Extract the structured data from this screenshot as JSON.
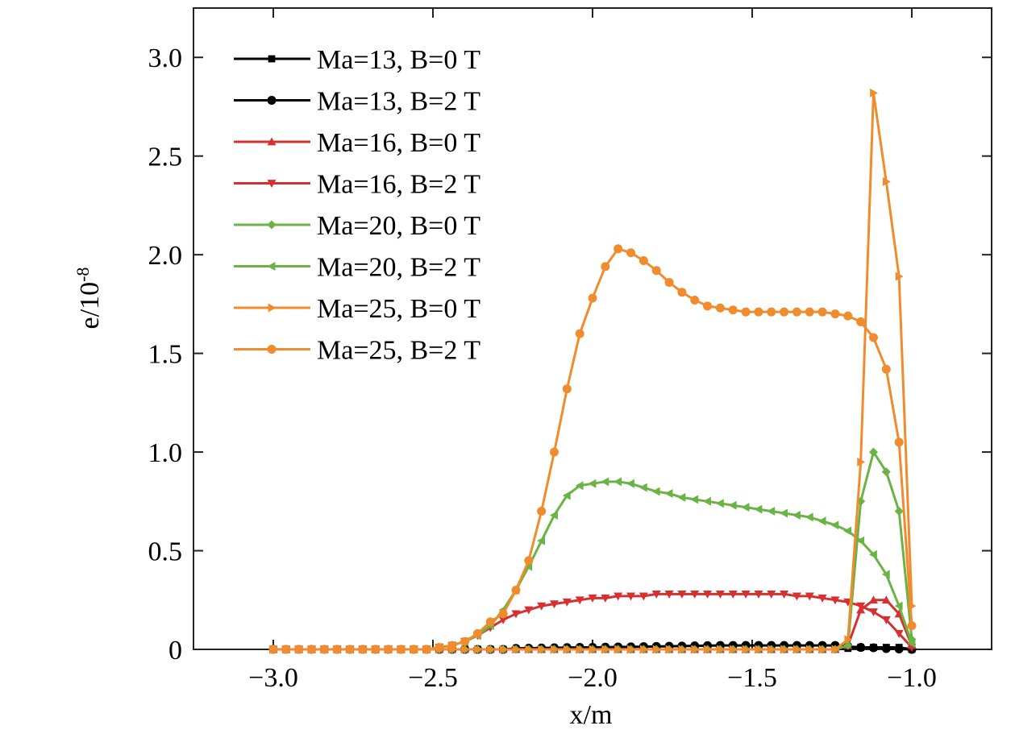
{
  "chart_data": {
    "type": "line",
    "xlabel": "x/m",
    "ylabel": "e/10",
    "ylabel_sup": "-8",
    "xlim": [
      -3.25,
      -0.75
    ],
    "ylim": [
      0,
      3.25
    ],
    "xticks": [
      {
        "value": -3.0,
        "label": "−3.0"
      },
      {
        "value": -2.5,
        "label": "−2.5"
      },
      {
        "value": -2.0,
        "label": "−2.0"
      },
      {
        "value": -1.5,
        "label": "−1.5"
      },
      {
        "value": -1.0,
        "label": "−1.0"
      }
    ],
    "yticks": [
      0,
      0.5,
      {
        "value": 1.0,
        "label": "1.0"
      },
      1.5,
      {
        "value": 2.0,
        "label": "2.0"
      },
      2.5,
      {
        "value": 3.0,
        "label": "3.0"
      }
    ],
    "legend": "upper left",
    "x": [
      -3.0,
      -2.96,
      -2.92,
      -2.88,
      -2.84,
      -2.8,
      -2.76,
      -2.72,
      -2.68,
      -2.64,
      -2.6,
      -2.56,
      -2.52,
      -2.48,
      -2.44,
      -2.4,
      -2.36,
      -2.32,
      -2.28,
      -2.24,
      -2.2,
      -2.16,
      -2.12,
      -2.08,
      -2.04,
      -2.0,
      -1.96,
      -1.92,
      -1.88,
      -1.84,
      -1.8,
      -1.76,
      -1.72,
      -1.68,
      -1.64,
      -1.6,
      -1.56,
      -1.52,
      -1.48,
      -1.44,
      -1.4,
      -1.36,
      -1.32,
      -1.28,
      -1.24,
      -1.2,
      -1.16,
      -1.12,
      -1.08,
      -1.04,
      -1.0
    ],
    "series": [
      {
        "name": "Ma=13, B=0 T",
        "color": "#000000",
        "marker": "square",
        "values": [
          0,
          0,
          0,
          0,
          0,
          0,
          0,
          0,
          0,
          0,
          0,
          0,
          0,
          0,
          0,
          0,
          0,
          0,
          0,
          0,
          0,
          0,
          0,
          0,
          0,
          0,
          0,
          0,
          0,
          0,
          0,
          0,
          0,
          0,
          0,
          0,
          0,
          0,
          0,
          0,
          0,
          0,
          0,
          0,
          0,
          0.005,
          0.01,
          0.01,
          0.01,
          0.01,
          0
        ]
      },
      {
        "name": "Ma=13, B=2 T",
        "color": "#000000",
        "marker": "circle",
        "values": [
          0,
          0,
          0,
          0,
          0,
          0,
          0,
          0,
          0,
          0,
          0,
          0,
          0,
          0,
          0,
          0,
          0,
          0,
          0,
          0.005,
          0.006,
          0.007,
          0.008,
          0.009,
          0.01,
          0.01,
          0.011,
          0.012,
          0.013,
          0.014,
          0.015,
          0.016,
          0.017,
          0.018,
          0.019,
          0.02,
          0.02,
          0.02,
          0.02,
          0.02,
          0.02,
          0.02,
          0.02,
          0.02,
          0.02,
          0.015,
          0.01,
          0.008,
          0.004,
          0.002,
          0
        ]
      },
      {
        "name": "Ma=16, B=0 T",
        "color": "#d63030",
        "marker": "up",
        "values": [
          0,
          0,
          0,
          0,
          0,
          0,
          0,
          0,
          0,
          0,
          0,
          0,
          0,
          0,
          0,
          0,
          0,
          0,
          0,
          0,
          0,
          0,
          0,
          0,
          0,
          0,
          0,
          0,
          0,
          0,
          0,
          0,
          0,
          0,
          0,
          0,
          0,
          0,
          0,
          0,
          0,
          0,
          0,
          0,
          0,
          0.02,
          0.2,
          0.25,
          0.25,
          0.18,
          0.02
        ]
      },
      {
        "name": "Ma=16, B=2 T",
        "color": "#d63030",
        "marker": "down",
        "values": [
          0,
          0,
          0,
          0,
          0,
          0,
          0,
          0,
          0,
          0,
          0,
          0,
          0,
          0.01,
          0.02,
          0.04,
          0.07,
          0.11,
          0.15,
          0.18,
          0.2,
          0.22,
          0.23,
          0.24,
          0.25,
          0.26,
          0.26,
          0.27,
          0.27,
          0.27,
          0.28,
          0.28,
          0.28,
          0.28,
          0.28,
          0.28,
          0.28,
          0.28,
          0.28,
          0.28,
          0.28,
          0.27,
          0.27,
          0.26,
          0.25,
          0.24,
          0.22,
          0.19,
          0.15,
          0.08,
          0.01
        ]
      },
      {
        "name": "Ma=20, B=0 T",
        "color": "#6ab344",
        "marker": "diamond",
        "values": [
          0,
          0,
          0,
          0,
          0,
          0,
          0,
          0,
          0,
          0,
          0,
          0,
          0,
          0,
          0,
          0,
          0,
          0,
          0,
          0,
          0,
          0,
          0,
          0,
          0,
          0,
          0,
          0,
          0,
          0,
          0,
          0,
          0,
          0,
          0,
          0,
          0,
          0,
          0,
          0,
          0,
          0,
          0,
          0,
          0,
          0.02,
          0.75,
          1.0,
          0.9,
          0.7,
          0.05
        ]
      },
      {
        "name": "Ma=20, B=2 T",
        "color": "#6ab344",
        "marker": "left",
        "values": [
          0,
          0,
          0,
          0,
          0,
          0,
          0,
          0,
          0,
          0,
          0,
          0,
          0,
          0.01,
          0.02,
          0.04,
          0.07,
          0.12,
          0.2,
          0.3,
          0.42,
          0.55,
          0.68,
          0.78,
          0.83,
          0.84,
          0.85,
          0.85,
          0.84,
          0.82,
          0.8,
          0.79,
          0.77,
          0.76,
          0.75,
          0.74,
          0.73,
          0.72,
          0.71,
          0.7,
          0.69,
          0.68,
          0.67,
          0.65,
          0.63,
          0.6,
          0.55,
          0.48,
          0.38,
          0.22,
          0.03
        ]
      },
      {
        "name": "Ma=25, B=0 T",
        "color": "#f08c2d",
        "marker": "right",
        "values": [
          0,
          0,
          0,
          0,
          0,
          0,
          0,
          0,
          0,
          0,
          0,
          0,
          0,
          0,
          0,
          0,
          0,
          0,
          0,
          0,
          0,
          0,
          0,
          0,
          0,
          0,
          0,
          0,
          0,
          0,
          0,
          0,
          0,
          0,
          0,
          0,
          0,
          0,
          0,
          0,
          0,
          0,
          0,
          0,
          0,
          0.05,
          0.95,
          2.82,
          2.37,
          1.89,
          0.22
        ]
      },
      {
        "name": "Ma=25, B=2 T",
        "color": "#f08c2d",
        "marker": "circle",
        "values": [
          0,
          0,
          0,
          0,
          0,
          0,
          0,
          0,
          0,
          0,
          0,
          0,
          0,
          0.01,
          0.02,
          0.04,
          0.08,
          0.14,
          0.18,
          0.3,
          0.45,
          0.7,
          1.0,
          1.32,
          1.6,
          1.78,
          1.94,
          2.03,
          2.01,
          1.97,
          1.92,
          1.86,
          1.81,
          1.77,
          1.74,
          1.73,
          1.72,
          1.71,
          1.71,
          1.71,
          1.71,
          1.71,
          1.71,
          1.71,
          1.7,
          1.69,
          1.66,
          1.58,
          1.42,
          1.05,
          0.12
        ]
      }
    ]
  }
}
